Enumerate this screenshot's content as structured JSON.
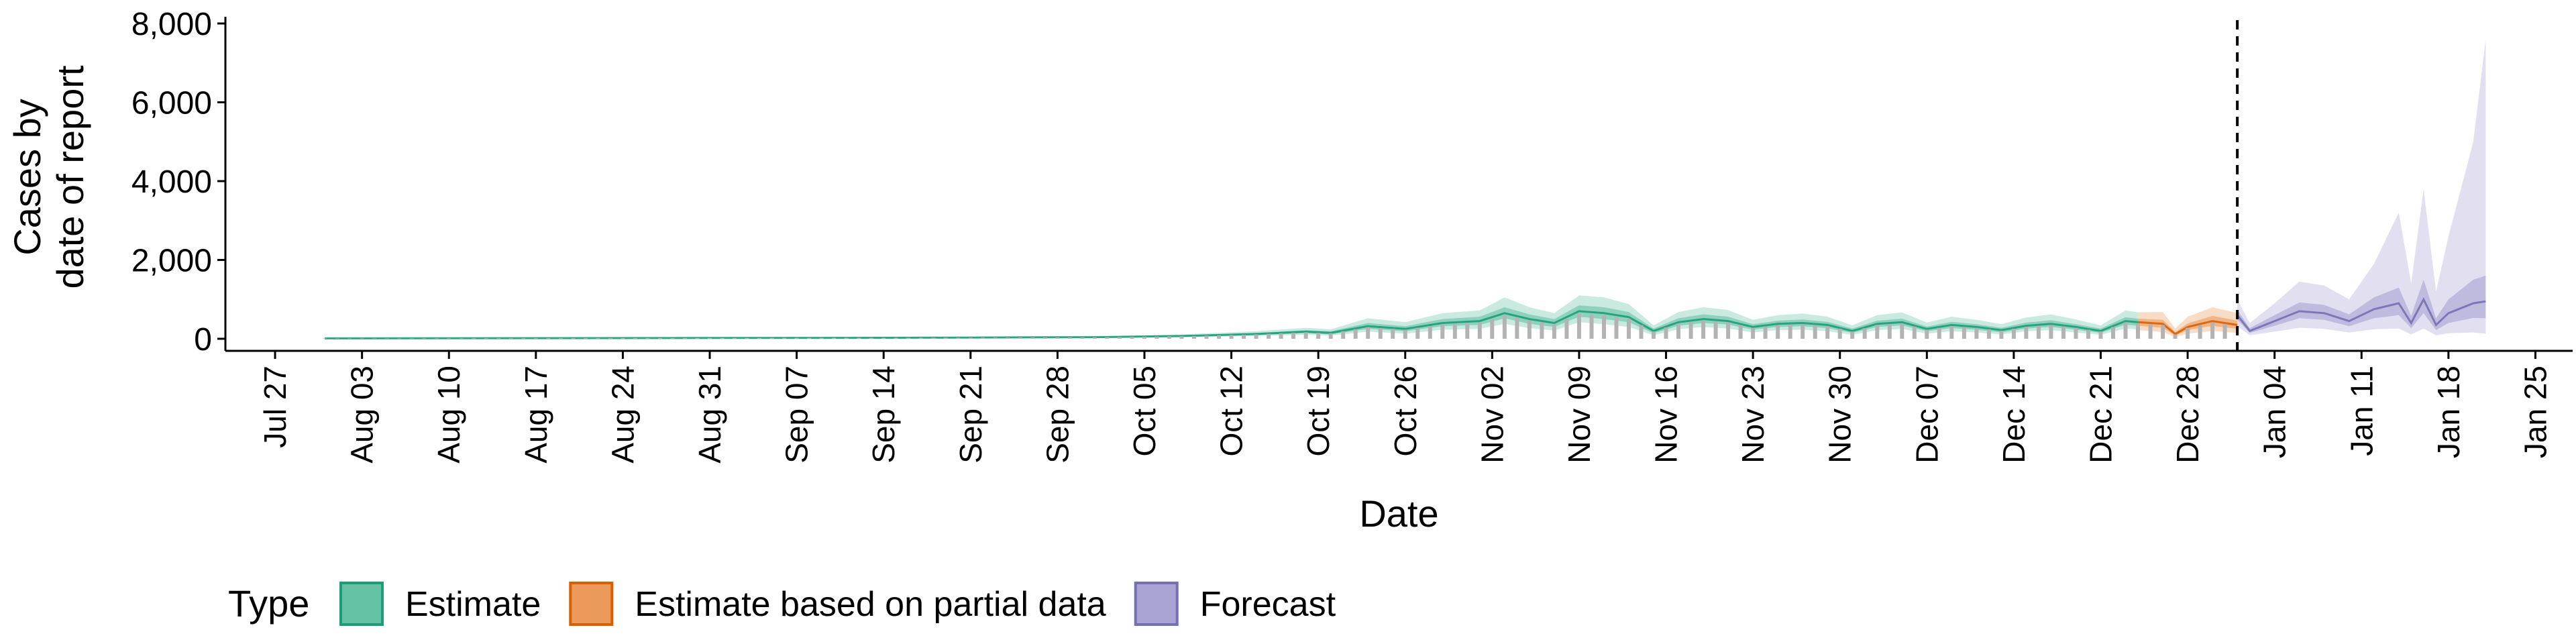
{
  "chart_data": {
    "type": "area",
    "xlabel": "Date",
    "ylabel_lines": [
      "Cases by",
      "date of report"
    ],
    "yticks": [
      0,
      2000,
      4000,
      6000,
      8000
    ],
    "ytick_labels": [
      "0",
      "2,000",
      "4,000",
      "6,000",
      "8,000"
    ],
    "ylim": [
      0,
      8000
    ],
    "xlim": [
      "2020-07-23",
      "2021-01-28"
    ],
    "xticks": [
      "2020-07-27",
      "2020-08-03",
      "2020-08-10",
      "2020-08-17",
      "2020-08-24",
      "2020-08-31",
      "2020-09-07",
      "2020-09-14",
      "2020-09-21",
      "2020-09-28",
      "2020-10-05",
      "2020-10-12",
      "2020-10-19",
      "2020-10-26",
      "2020-11-02",
      "2020-11-09",
      "2020-11-16",
      "2020-11-23",
      "2020-11-30",
      "2020-12-07",
      "2020-12-14",
      "2020-12-21",
      "2020-12-28",
      "2021-01-04",
      "2021-01-11",
      "2021-01-18",
      "2021-01-25"
    ],
    "xtick_labels": [
      "Jul 27",
      "Aug 03",
      "Aug 10",
      "Aug 17",
      "Aug 24",
      "Aug 31",
      "Sep 07",
      "Sep 14",
      "Sep 21",
      "Sep 28",
      "Oct 05",
      "Oct 12",
      "Oct 19",
      "Oct 26",
      "Nov 02",
      "Nov 09",
      "Nov 16",
      "Nov 23",
      "Nov 30",
      "Dec 07",
      "Dec 14",
      "Dec 21",
      "Dec 28",
      "Jan 04",
      "Jan 11",
      "Jan 18",
      "Jan 25"
    ],
    "reference_line": {
      "date": "2021-01-01",
      "style": "dashed"
    },
    "grid": false,
    "legend_position": "bottom-left",
    "legend_title": "Type",
    "legend": [
      {
        "name": "Estimate",
        "fill": "#66c2a5",
        "stroke": "#1b9e77"
      },
      {
        "name": "Estimate based on partial data",
        "fill": "#eb9a5b",
        "stroke": "#d95f02"
      },
      {
        "name": "Forecast",
        "fill": "#a8a4d4",
        "stroke": "#7570b3"
      }
    ],
    "observed_cases_color": "#b3b3b3",
    "series": [
      {
        "name": "Estimate",
        "color": "#1b9e77",
        "x": [
          "2020-07-31",
          "2020-08-15",
          "2020-09-01",
          "2020-09-15",
          "2020-10-01",
          "2020-10-08",
          "2020-10-14",
          "2020-10-18",
          "2020-10-20",
          "2020-10-23",
          "2020-10-26",
          "2020-10-29",
          "2020-11-01",
          "2020-11-03",
          "2020-11-05",
          "2020-11-07",
          "2020-11-09",
          "2020-11-11",
          "2020-11-13",
          "2020-11-15",
          "2020-11-17",
          "2020-11-19",
          "2020-11-21",
          "2020-11-23",
          "2020-11-25",
          "2020-11-27",
          "2020-11-29",
          "2020-12-01",
          "2020-12-03",
          "2020-12-05",
          "2020-12-07",
          "2020-12-09",
          "2020-12-11",
          "2020-12-13",
          "2020-12-15",
          "2020-12-17",
          "2020-12-19",
          "2020-12-21",
          "2020-12-23",
          "2020-12-24"
        ],
        "median": [
          10,
          15,
          20,
          25,
          40,
          70,
          120,
          180,
          150,
          320,
          250,
          400,
          450,
          650,
          500,
          400,
          700,
          650,
          550,
          200,
          420,
          500,
          450,
          300,
          380,
          400,
          350,
          200,
          380,
          420,
          250,
          350,
          300,
          220,
          330,
          380,
          300,
          200,
          450,
          420
        ],
        "lower_50": [
          7,
          11,
          15,
          20,
          32,
          55,
          95,
          140,
          110,
          250,
          190,
          320,
          350,
          520,
          380,
          300,
          560,
          500,
          420,
          140,
          330,
          400,
          360,
          230,
          300,
          320,
          270,
          150,
          300,
          340,
          190,
          270,
          230,
          160,
          260,
          300,
          230,
          150,
          360,
          330
        ],
        "upper_50": [
          13,
          19,
          25,
          31,
          48,
          85,
          150,
          220,
          190,
          400,
          320,
          500,
          560,
          800,
          620,
          500,
          850,
          800,
          680,
          260,
          520,
          620,
          560,
          370,
          460,
          490,
          430,
          260,
          460,
          510,
          310,
          430,
          370,
          280,
          410,
          470,
          370,
          260,
          550,
          510
        ],
        "lower_90": [
          3,
          6,
          10,
          14,
          22,
          38,
          70,
          100,
          80,
          180,
          130,
          230,
          250,
          380,
          270,
          210,
          420,
          370,
          300,
          90,
          240,
          300,
          260,
          160,
          220,
          230,
          190,
          100,
          220,
          250,
          130,
          190,
          160,
          110,
          190,
          220,
          160,
          100,
          260,
          240
        ],
        "upper_90": [
          18,
          25,
          32,
          40,
          60,
          110,
          190,
          280,
          240,
          520,
          420,
          650,
          720,
          1050,
          800,
          650,
          1100,
          1050,
          880,
          340,
          680,
          800,
          730,
          480,
          600,
          640,
          560,
          340,
          600,
          670,
          410,
          560,
          480,
          370,
          540,
          620,
          490,
          340,
          720,
          670
        ]
      },
      {
        "name": "Estimate based on partial data",
        "color": "#d95f02",
        "x": [
          "2020-12-24",
          "2020-12-26",
          "2020-12-27",
          "2020-12-28",
          "2020-12-30",
          "2021-01-01"
        ],
        "median": [
          420,
          380,
          120,
          300,
          450,
          350
        ],
        "lower_50": [
          330,
          280,
          80,
          220,
          330,
          250
        ],
        "upper_50": [
          510,
          480,
          170,
          390,
          580,
          460
        ],
        "lower_90": [
          220,
          170,
          40,
          130,
          200,
          150
        ],
        "upper_90": [
          670,
          680,
          260,
          560,
          800,
          650
        ]
      },
      {
        "name": "Forecast",
        "color": "#7570b3",
        "x": [
          "2021-01-01",
          "2021-01-02",
          "2021-01-04",
          "2021-01-06",
          "2021-01-08",
          "2021-01-10",
          "2021-01-12",
          "2021-01-14",
          "2021-01-15",
          "2021-01-16",
          "2021-01-17",
          "2021-01-18",
          "2021-01-20",
          "2021-01-21"
        ],
        "median": [
          600,
          200,
          450,
          700,
          650,
          450,
          750,
          900,
          400,
          1000,
          350,
          650,
          900,
          950
        ],
        "lower_50": [
          480,
          150,
          330,
          520,
          480,
          320,
          520,
          600,
          270,
          650,
          220,
          400,
          530,
          520
        ],
        "upper_50": [
          730,
          270,
          600,
          920,
          860,
          620,
          1050,
          1300,
          580,
          1500,
          520,
          1000,
          1500,
          1600
        ],
        "lower_90": [
          320,
          90,
          180,
          280,
          250,
          160,
          240,
          260,
          110,
          260,
          90,
          140,
          160,
          130
        ],
        "upper_90": [
          1000,
          400,
          900,
          1450,
          1350,
          1000,
          1900,
          3200,
          1400,
          3800,
          1200,
          2600,
          5000,
          7600
        ]
      }
    ]
  }
}
